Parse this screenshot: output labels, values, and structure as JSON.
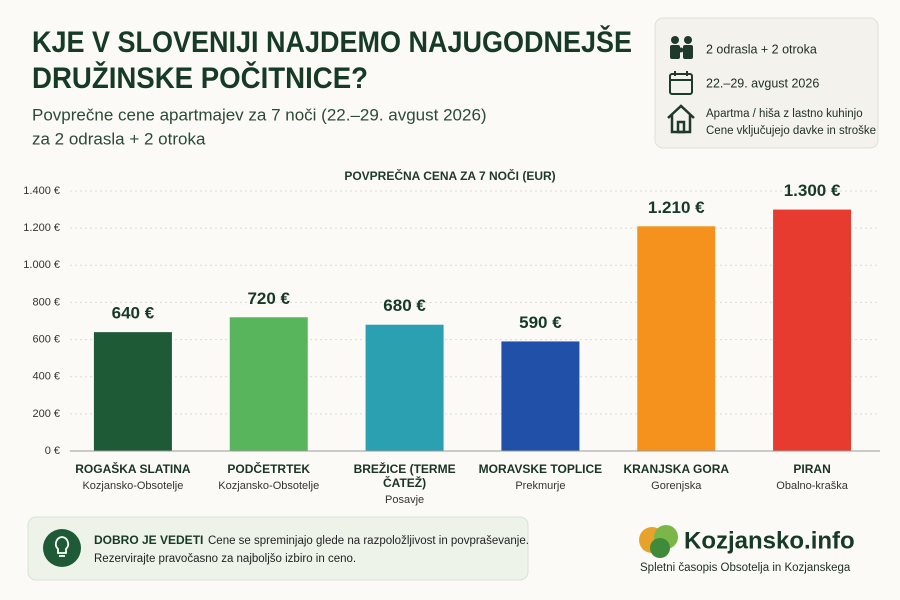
{
  "chart_data": {
    "type": "bar",
    "title_lines": [
      "KJE V SLOVENIJI NAJDEMO NAJUGODNEJŠE",
      "DRUŽINSKE POČITNICE?"
    ],
    "subtitle_lines": [
      "Povprečne cene apartmajev za 7 noči (22.–29. avgust 2026)",
      "za 2 odrasla + 2 otroka"
    ],
    "info": [
      "2 odrasla + 2 otroka",
      "22.–29. avgust 2026",
      "Apartma / hiša z lastno kuhinjo",
      "Cene vključujejo davke in stroške"
    ],
    "chart_title": "POVPREČNA CENA ZA 7 NOČI (EUR)",
    "categories": [
      "ROGAŠKA SLATINA",
      "PODČETRTEK",
      "BREŽICE (TERME ČATEŽ)",
      "MORAVSKE TOPLICE",
      "KRANJSKA GORA",
      "PIRAN"
    ],
    "regions": [
      "Kozjansko-Obsotelje",
      "Kozjansko-Obsotelje",
      "Posavje",
      "Prekmurje",
      "Gorenjska",
      "Obalno-kraška"
    ],
    "values": [
      640,
      720,
      680,
      590,
      1210,
      1300
    ],
    "value_labels": [
      "640 €",
      "720 €",
      "680 €",
      "590 €",
      "1.210 €",
      "1.300 €"
    ],
    "colors": [
      "#1f5a36",
      "#58b55c",
      "#2aa0b0",
      "#2050a8",
      "#f5921e",
      "#e63b2e"
    ],
    "ylim": [
      0,
      1400
    ],
    "yticks": [
      {
        "value": 0,
        "label": "0 €"
      },
      {
        "value": 200,
        "label": "200 €"
      },
      {
        "value": 400,
        "label": "400 €"
      },
      {
        "value": 600,
        "label": "600 €"
      },
      {
        "value": 800,
        "label": "800 €"
      },
      {
        "value": 1000,
        "label": "1.000 €"
      },
      {
        "value": 1200,
        "label": "1.200 €"
      },
      {
        "value": 1400,
        "label": "1.400 €"
      }
    ],
    "grid": true,
    "tip_heading": "DOBRO JE VEDETI",
    "tip_lines": [
      "Cene se spreminjajo glede na razpoložljivost in povpraševanje.",
      "Rezervirajte pravočasno za najboljšo izbiro in ceno."
    ],
    "brand": "Kozjansko.info",
    "brand_tagline": "Spletni časopis Obsotelja in Kozjanskega"
  }
}
